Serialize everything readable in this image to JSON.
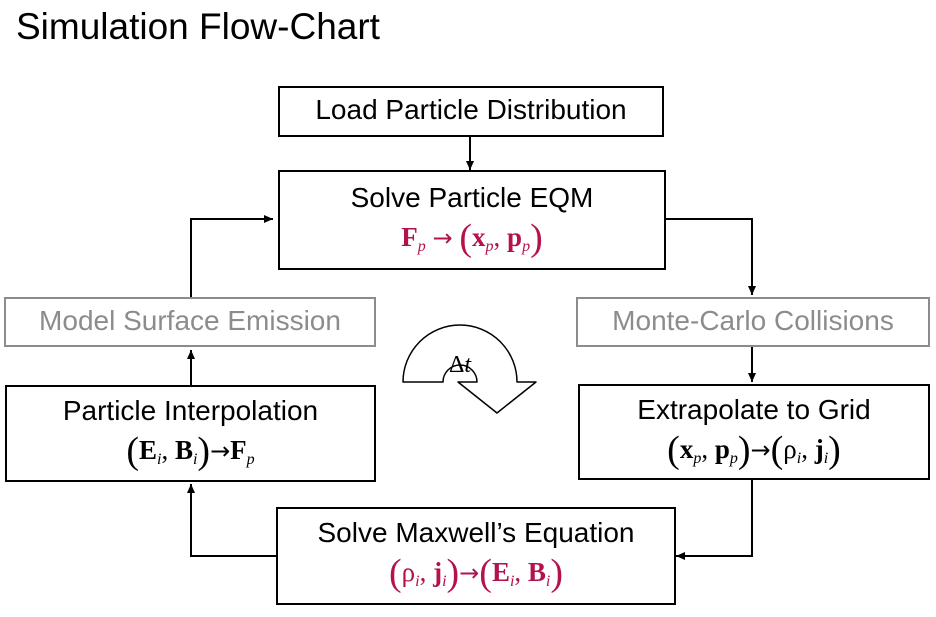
{
  "title": "Simulation Flow-Chart",
  "boxes": {
    "load": {
      "label": "Load Particle Distribution"
    },
    "solve_eqm": {
      "label": "Solve Particle EQM",
      "eq": {
        "lhs": "F",
        "lhs_sub": "p",
        "arrow": "→",
        "rhs_1": "x",
        "rhs_1_sub": "p",
        "rhs_2": "p",
        "rhs_2_sub": "p"
      }
    },
    "surface": {
      "label": "Model Surface Emission"
    },
    "mcc": {
      "label": "Monte-Carlo Collisions"
    },
    "interp": {
      "label": "Particle Interpolation",
      "eq": {
        "lhs_1": "E",
        "lhs_1_sub": "i",
        "lhs_2": "B",
        "lhs_2_sub": "i",
        "arrow": "→",
        "rhs": "F",
        "rhs_sub": "p"
      }
    },
    "extrap": {
      "label": "Extrapolate to Grid",
      "eq": {
        "lhs_1": "x",
        "lhs_1_sub": "p",
        "lhs_2": "p",
        "lhs_2_sub": "p",
        "arrow": "→",
        "rhs_1": "ρ",
        "rhs_1_sub": "i",
        "rhs_2": "j",
        "rhs_2_sub": "i"
      }
    },
    "maxwell": {
      "label": "Solve Maxwell’s Equation",
      "eq": {
        "lhs_1": "ρ",
        "lhs_1_sub": "i",
        "lhs_2": "j",
        "lhs_2_sub": "i",
        "arrow": "→",
        "rhs_1": "E",
        "rhs_1_sub": "i",
        "rhs_2": "B",
        "rhs_2_sub": "i"
      }
    }
  },
  "cycle": {
    "symbol": "Δ",
    "var": "t"
  },
  "colors": {
    "equation_red": "#b3124f",
    "inactive_gray": "#8c8c8c",
    "line": "#000000"
  }
}
